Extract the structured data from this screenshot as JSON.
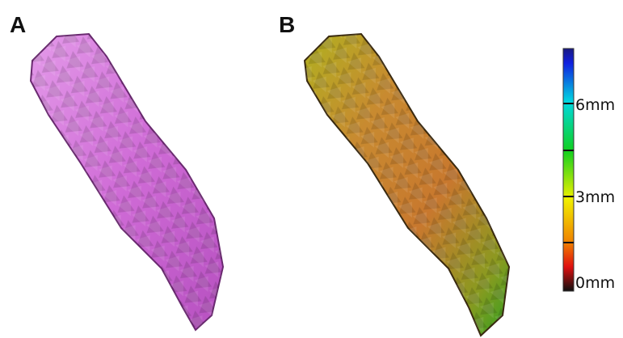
{
  "panels": [
    {
      "label": "A"
    },
    {
      "label": "B"
    }
  ],
  "colorbar": {
    "ticks": [
      "6mm",
      "3mm",
      "0mm"
    ]
  }
}
